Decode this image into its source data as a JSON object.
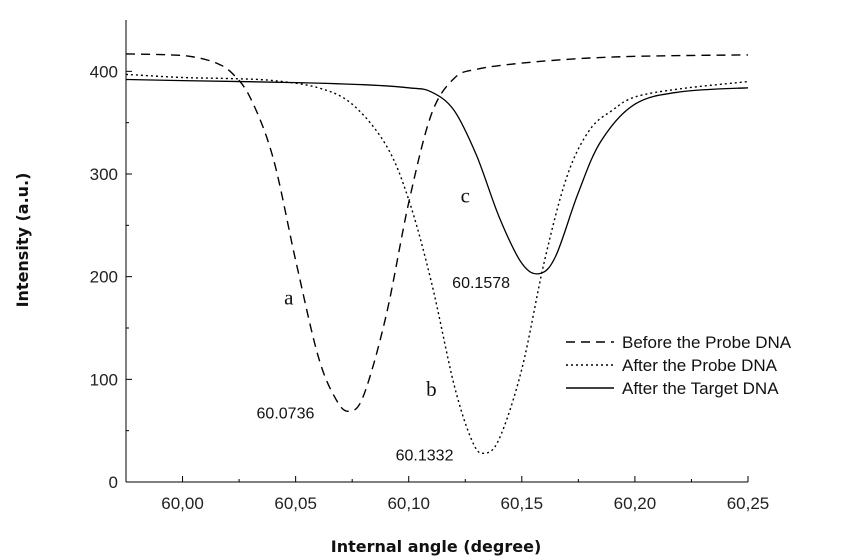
{
  "chart_data": {
    "type": "line",
    "title": "",
    "xlabel": "Internal angle (degree)",
    "ylabel": "Intensity (a.u.)",
    "xlim": [
      59.975,
      60.25
    ],
    "ylim": [
      0,
      450
    ],
    "x_ticks": [
      "60,00",
      "60,05",
      "60,10",
      "60,15",
      "60,20",
      "60,25"
    ],
    "y_ticks": [
      "0",
      "100",
      "200",
      "300",
      "400"
    ],
    "grid": false,
    "legend_position": "bottom-right",
    "series": [
      {
        "name": "Before the Probe DNA",
        "line_style": "dashed",
        "x": [
          59.975,
          59.995,
          60.005,
          60.015,
          60.022,
          60.03,
          60.04,
          60.05,
          60.06,
          60.068,
          60.0736,
          60.08,
          60.09,
          60.1,
          60.11,
          60.12,
          60.13,
          60.15,
          60.18,
          60.21,
          60.25
        ],
        "y": [
          417,
          416,
          414,
          408,
          398,
          374,
          316,
          216,
          122,
          80,
          69,
          84,
          162,
          272,
          358,
          393,
          402,
          408,
          413,
          415,
          416
        ]
      },
      {
        "name": "After the Probe DNA",
        "line_style": "dotted",
        "x": [
          59.975,
          60.0,
          60.02,
          60.04,
          60.06,
          60.075,
          60.09,
          60.1,
          60.11,
          60.12,
          60.128,
          60.1332,
          60.14,
          60.15,
          60.16,
          60.17,
          60.18,
          60.19,
          60.2,
          60.22,
          60.25
        ],
        "y": [
          397,
          394,
          393,
          391,
          384,
          368,
          328,
          275,
          195,
          95,
          40,
          28,
          42,
          110,
          215,
          298,
          343,
          362,
          375,
          383,
          390
        ]
      },
      {
        "name": "After the Target DNA",
        "line_style": "solid",
        "x": [
          59.975,
          60.0,
          60.05,
          60.08,
          60.1,
          60.11,
          60.12,
          60.13,
          60.14,
          60.15,
          60.1578,
          60.165,
          60.175,
          60.185,
          60.2,
          60.22,
          60.25
        ],
        "y": [
          392,
          391,
          389,
          387,
          384,
          380,
          362,
          318,
          258,
          213,
          203,
          220,
          282,
          332,
          368,
          380,
          384
        ]
      }
    ],
    "annotations": [
      {
        "text": "a",
        "kind": "letter",
        "x": 60.047,
        "y": 173
      },
      {
        "text": "b",
        "kind": "letter",
        "x": 60.11,
        "y": 84
      },
      {
        "text": "c",
        "kind": "letter",
        "x": 60.125,
        "y": 272
      },
      {
        "text": "60.0736",
        "kind": "value",
        "x": 60.0455,
        "y": 62
      },
      {
        "text": "60.1332",
        "kind": "value",
        "x": 60.107,
        "y": 21
      },
      {
        "text": "60.1578",
        "kind": "value",
        "x": 60.132,
        "y": 189
      }
    ]
  }
}
